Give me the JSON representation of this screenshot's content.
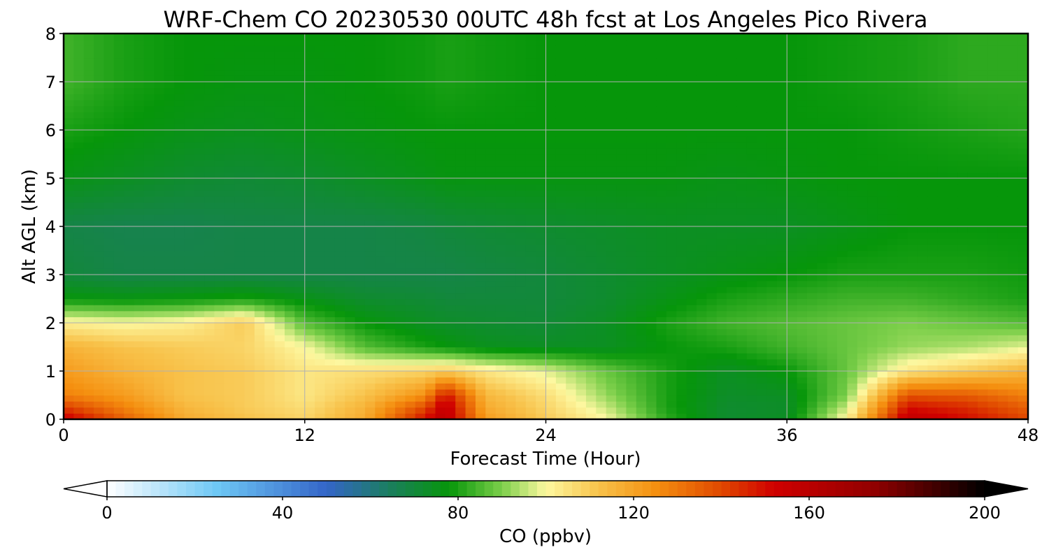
{
  "chart_data": {
    "type": "heatmap",
    "title": "WRF-Chem CO  20230530 00UTC 48h fcst at Los Angeles Pico Rivera",
    "xlabel": "Forecast Time (Hour)",
    "ylabel": "Alt AGL (km)",
    "xlim": [
      0,
      48
    ],
    "ylim": [
      0,
      8
    ],
    "xticks": [
      0,
      12,
      24,
      36,
      48
    ],
    "yticks": [
      0,
      1,
      2,
      3,
      4,
      5,
      6,
      7,
      8
    ],
    "grid": true,
    "colorbar": {
      "label": "CO  (ppbv)",
      "range": [
        0,
        200
      ],
      "ticks": [
        0,
        40,
        80,
        120,
        160,
        200
      ],
      "extend": "both",
      "stops": [
        {
          "v": 0,
          "color": "#ffffff"
        },
        {
          "v": 25,
          "color": "#6ec8f5"
        },
        {
          "v": 50,
          "color": "#3465c8"
        },
        {
          "v": 65,
          "color": "#1a7f5a"
        },
        {
          "v": 78,
          "color": "#06960a"
        },
        {
          "v": 90,
          "color": "#7ccf4a"
        },
        {
          "v": 100,
          "color": "#fdf8a0"
        },
        {
          "v": 112,
          "color": "#f8c24a"
        },
        {
          "v": 125,
          "color": "#f59010"
        },
        {
          "v": 140,
          "color": "#e04800"
        },
        {
          "v": 152,
          "color": "#d00000"
        },
        {
          "v": 175,
          "color": "#900000"
        },
        {
          "v": 200,
          "color": "#000000"
        }
      ]
    },
    "hours": [
      0,
      3,
      6,
      9,
      12,
      15,
      18,
      19,
      21,
      24,
      27,
      30,
      33,
      36,
      39,
      42,
      45,
      48
    ],
    "altitudes_km": [
      0,
      0.25,
      0.5,
      1,
      1.5,
      2,
      2.5,
      3,
      4,
      5,
      6,
      7,
      8
    ],
    "values_ppbv": [
      [
        155,
        135,
        118,
        112,
        108,
        118,
        150,
        160,
        122,
        110,
        100,
        82,
        72,
        74,
        102,
        158,
        150,
        140
      ],
      [
        142,
        128,
        115,
        110,
        106,
        116,
        140,
        158,
        118,
        108,
        96,
        80,
        72,
        73,
        96,
        150,
        145,
        135
      ],
      [
        128,
        122,
        112,
        110,
        104,
        112,
        125,
        150,
        115,
        106,
        92,
        80,
        73,
        74,
        90,
        138,
        136,
        128
      ],
      [
        122,
        116,
        112,
        110,
        104,
        106,
        108,
        110,
        104,
        98,
        88,
        80,
        74,
        78,
        88,
        104,
        110,
        116
      ],
      [
        116,
        112,
        110,
        108,
        100,
        86,
        80,
        78,
        75,
        74,
        74,
        78,
        80,
        84,
        88,
        92,
        94,
        98
      ],
      [
        102,
        100,
        102,
        110,
        86,
        78,
        74,
        73,
        72,
        71,
        74,
        80,
        84,
        86,
        88,
        90,
        88,
        86
      ],
      [
        78,
        77,
        78,
        80,
        76,
        72,
        71,
        70,
        70,
        70,
        72,
        76,
        80,
        82,
        84,
        84,
        82,
        80
      ],
      [
        70,
        68,
        68,
        68,
        68,
        68,
        68,
        68,
        69,
        70,
        72,
        74,
        76,
        78,
        80,
        80,
        80,
        79
      ],
      [
        68,
        67,
        67,
        68,
        68,
        68,
        69,
        70,
        71,
        72,
        73,
        74,
        74,
        74,
        76,
        78,
        78,
        78
      ],
      [
        76,
        74,
        72,
        71,
        72,
        74,
        76,
        77,
        77,
        77,
        77,
        77,
        76,
        77,
        78,
        78,
        78,
        78
      ],
      [
        80,
        78,
        76,
        75,
        76,
        77,
        78,
        78,
        78,
        78,
        78,
        78,
        78,
        78,
        78,
        79,
        80,
        81
      ],
      [
        84,
        80,
        78,
        77,
        77,
        78,
        79,
        80,
        79,
        78,
        78,
        78,
        78,
        78,
        79,
        80,
        82,
        82
      ],
      [
        84,
        80,
        78,
        78,
        78,
        78,
        79,
        80,
        79,
        78,
        78,
        78,
        78,
        78,
        79,
        80,
        82,
        82
      ]
    ]
  }
}
